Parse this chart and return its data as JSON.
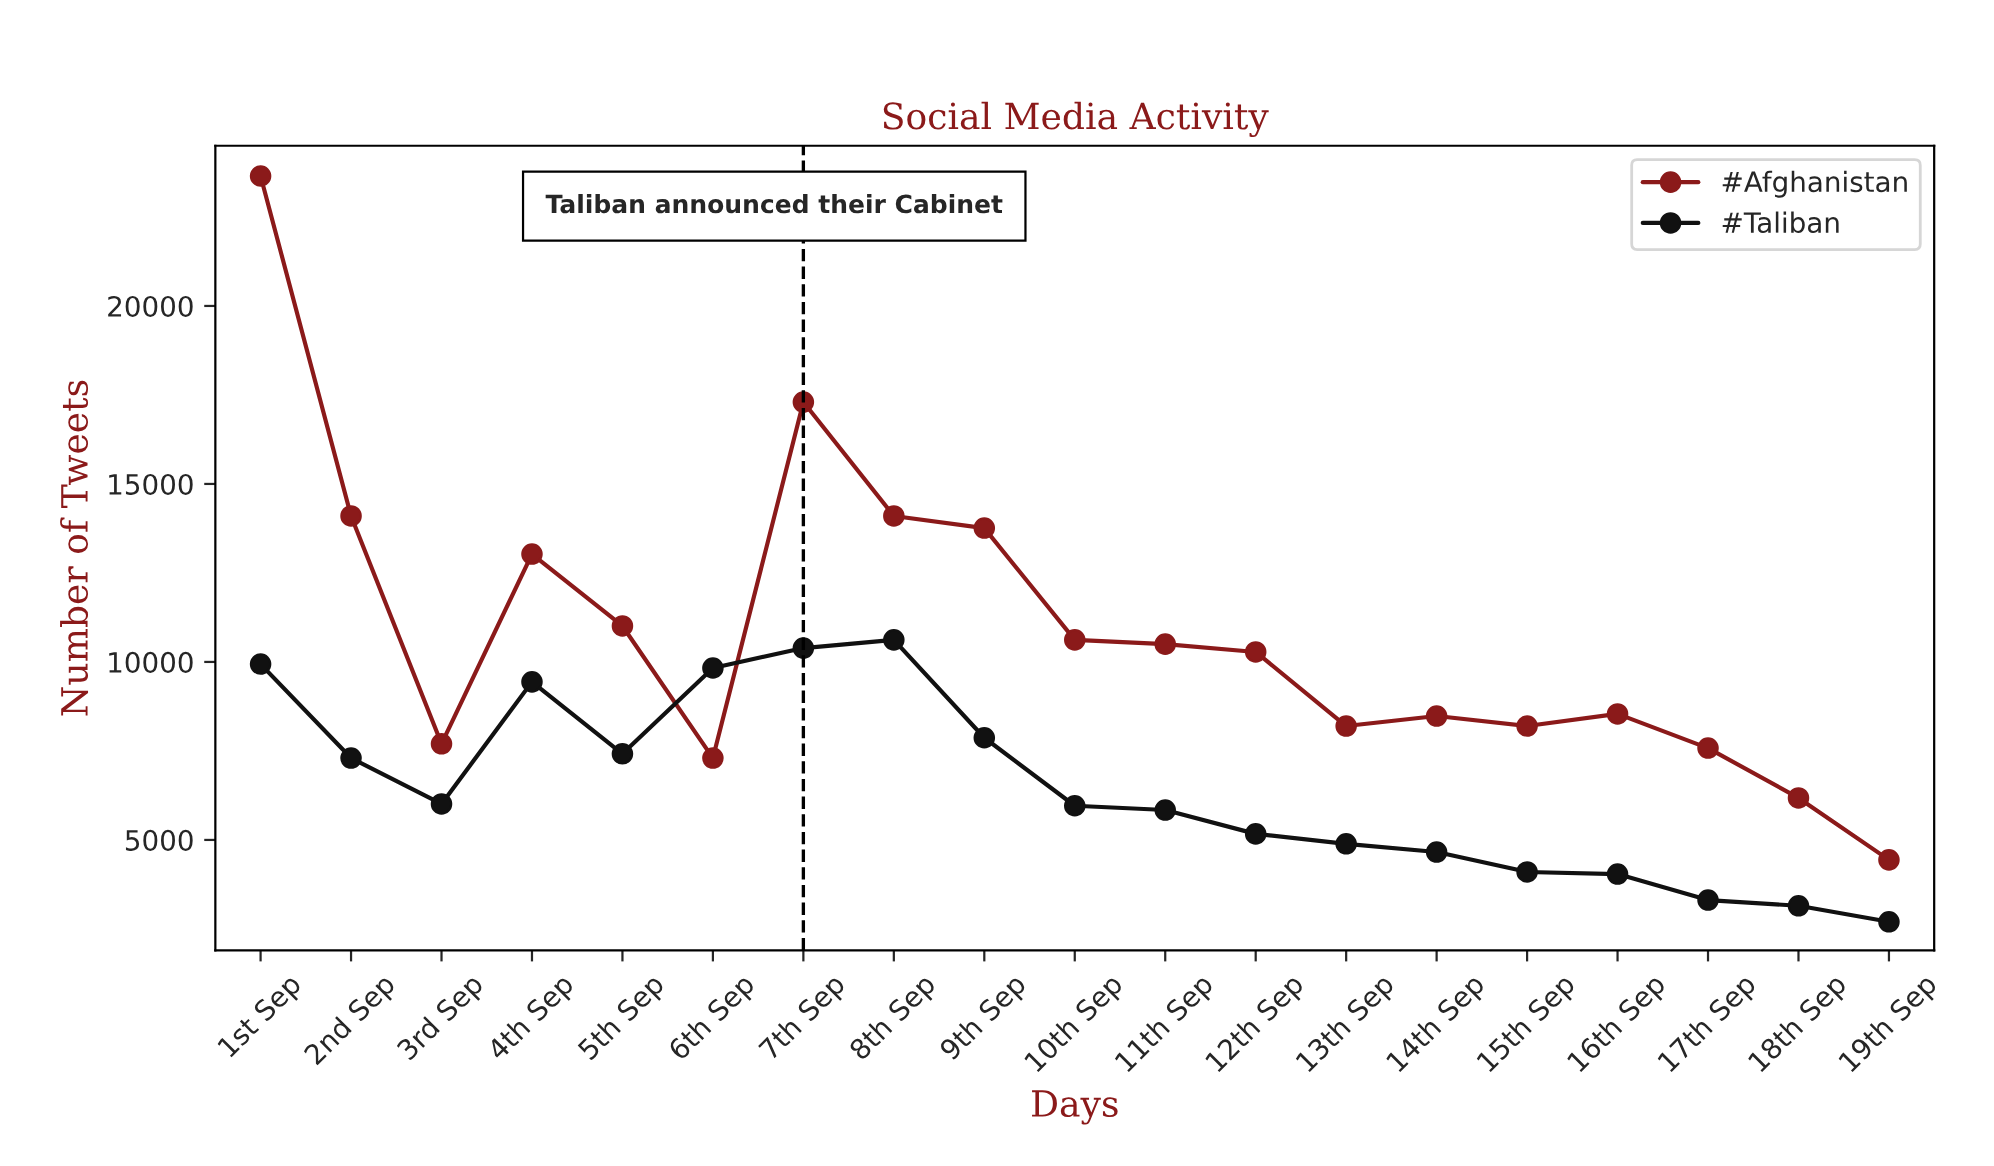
{
  "chart_data": {
    "type": "line",
    "title": "Social Media Activity",
    "xlabel": "Days",
    "ylabel": "Number of Tweets",
    "categories": [
      "1st Sep",
      "2nd Sep",
      "3rd Sep",
      "4th Sep",
      "5th Sep",
      "6th Sep",
      "7th Sep",
      "8th Sep",
      "9th Sep",
      "10th Sep",
      "11th Sep",
      "12th Sep",
      "13th Sep",
      "14th Sep",
      "15th Sep",
      "16th Sep",
      "17th Sep",
      "18th Sep",
      "19th Sep"
    ],
    "series": [
      {
        "name": "#Afghanistan",
        "color": "#8b1a1a",
        "values": [
          23650,
          14100,
          7700,
          13030,
          11010,
          7300,
          17300,
          14100,
          13760,
          10620,
          10500,
          10280,
          8200,
          8480,
          8200,
          8540,
          7580,
          6180,
          4440
        ]
      },
      {
        "name": "#Taliban",
        "color": "#111111",
        "values": [
          9940,
          7300,
          6010,
          9440,
          7420,
          9830,
          10390,
          10620,
          7870,
          5960,
          5840,
          5170,
          4890,
          4660,
          4100,
          4040,
          3310,
          3150,
          2700
        ]
      }
    ],
    "ylim": [
      1900,
      24500
    ],
    "yticks": [
      5000,
      10000,
      15000,
      20000
    ],
    "ref_lines": [
      {
        "axis": "x",
        "value": "7th Sep",
        "label": "Taliban announced their Cabinet",
        "color": "#000000",
        "line_style": "dashed"
      }
    ],
    "marker": "circle",
    "line_style": "solid",
    "legend": "top right",
    "grid": false
  }
}
